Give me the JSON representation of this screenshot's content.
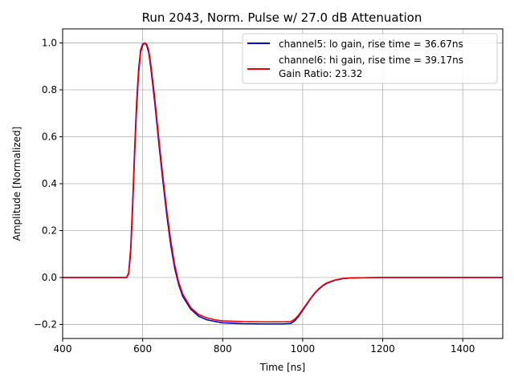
{
  "chart_data": {
    "type": "line",
    "title": "Run 2043, Norm. Pulse w/ 27.0 dB Attenuation",
    "xlabel": "Time [ns]",
    "ylabel": "Amplitude [Normalized]",
    "xlim": [
      400,
      1500
    ],
    "ylim": [
      -0.26,
      1.06
    ],
    "xticks": [
      400,
      600,
      800,
      1000,
      1200,
      1400
    ],
    "yticks": [
      -0.2,
      0.0,
      0.2,
      0.4,
      0.6,
      0.8,
      1.0
    ],
    "ytick_labels": [
      "−0.2",
      "0.0",
      "0.2",
      "0.4",
      "0.6",
      "0.8",
      "1.0"
    ],
    "grid": true,
    "legend_position": "top-right",
    "legend_extra_text": "Gain Ratio: 23.32",
    "series": [
      {
        "name": "channel5: lo gain, rise time = 36.67ns",
        "color": "#0000cc",
        "x": [
          400,
          500,
          550,
          560,
          565,
          570,
          575,
          580,
          585,
          590,
          595,
          600,
          605,
          610,
          615,
          620,
          630,
          640,
          650,
          660,
          670,
          680,
          690,
          700,
          720,
          740,
          760,
          780,
          800,
          850,
          900,
          950,
          970,
          980,
          990,
          1000,
          1010,
          1020,
          1030,
          1040,
          1050,
          1060,
          1080,
          1100,
          1120,
          1150,
          1200,
          1300,
          1400,
          1500
        ],
        "y": [
          0.0,
          0.0,
          0.0,
          0.0,
          0.02,
          0.12,
          0.32,
          0.55,
          0.75,
          0.89,
          0.97,
          0.995,
          1.0,
          0.99,
          0.96,
          0.9,
          0.75,
          0.58,
          0.42,
          0.27,
          0.14,
          0.04,
          -0.03,
          -0.08,
          -0.135,
          -0.165,
          -0.18,
          -0.187,
          -0.193,
          -0.197,
          -0.198,
          -0.198,
          -0.196,
          -0.185,
          -0.165,
          -0.14,
          -0.115,
          -0.09,
          -0.068,
          -0.05,
          -0.036,
          -0.025,
          -0.012,
          -0.005,
          -0.002,
          -0.001,
          0.0,
          0.0,
          0.0,
          0.0
        ]
      },
      {
        "name": "channel6: hi gain, rise time = 39.17ns",
        "color": "#ee0000",
        "x": [
          400,
          500,
          550,
          560,
          565,
          570,
          575,
          580,
          585,
          590,
          595,
          600,
          605,
          610,
          615,
          620,
          630,
          640,
          650,
          660,
          670,
          680,
          690,
          700,
          720,
          740,
          760,
          780,
          800,
          850,
          900,
          950,
          970,
          980,
          990,
          1000,
          1010,
          1020,
          1030,
          1040,
          1050,
          1060,
          1080,
          1100,
          1120,
          1150,
          1200,
          1300,
          1400,
          1500
        ],
        "y": [
          0.0,
          0.0,
          0.0,
          0.0,
          0.015,
          0.1,
          0.29,
          0.52,
          0.72,
          0.87,
          0.96,
          0.99,
          1.0,
          0.995,
          0.97,
          0.915,
          0.77,
          0.6,
          0.44,
          0.29,
          0.16,
          0.055,
          -0.02,
          -0.07,
          -0.128,
          -0.158,
          -0.172,
          -0.18,
          -0.185,
          -0.188,
          -0.189,
          -0.189,
          -0.188,
          -0.178,
          -0.16,
          -0.136,
          -0.112,
          -0.088,
          -0.066,
          -0.048,
          -0.034,
          -0.023,
          -0.011,
          -0.004,
          -0.002,
          -0.001,
          0.0,
          0.0,
          0.0,
          0.0
        ]
      }
    ]
  }
}
